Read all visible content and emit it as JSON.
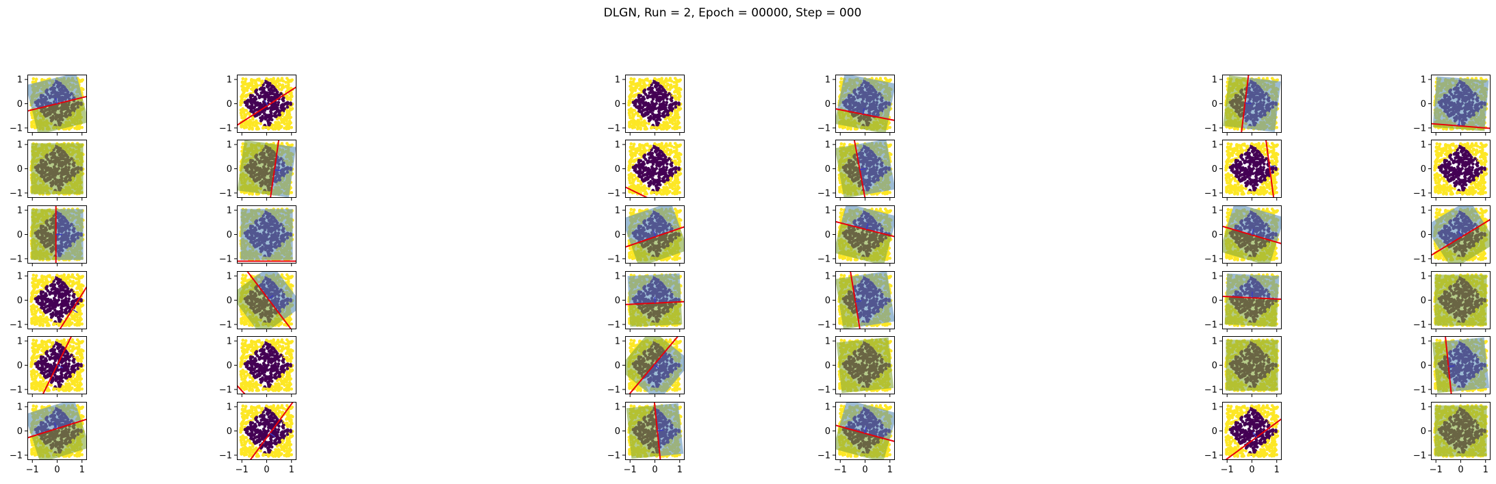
{
  "chart_data": {
    "type": "scatter",
    "title": "DLGN, Run = 2, Epoch = 00000, Step = 000",
    "layout": {
      "rows": 6,
      "columns": 6
    },
    "grid": false,
    "xlim": [
      -1.2,
      1.2
    ],
    "ylim": [
      -1.2,
      1.2
    ],
    "xticks": [
      -1,
      0,
      1
    ],
    "yticks": [
      -1,
      0,
      1
    ],
    "xtick_labels": [
      "−1",
      "0",
      "1"
    ],
    "ytick_labels": [
      "−1",
      "0",
      "1"
    ],
    "classes": [
      {
        "name": "inside |x|+|y|<1",
        "color": "#440154"
      },
      {
        "name": "outside",
        "color": "#fde725"
      }
    ],
    "overlay_colors": {
      "positive_half": "#5b8fb9",
      "negative_half": "#84a83a",
      "decision_line": "#e8000b",
      "arrow": "#3b3bc4"
    },
    "panels": [
      [
        {
          "w": [
            -0.25,
            1.0
          ],
          "b": 0.0,
          "shade": true
        },
        {
          "w": [
            -0.66,
            1.0
          ],
          "b": 0.1,
          "shade": false
        },
        {
          "w": [
            0.05,
            1.0
          ],
          "b": -2.4,
          "shade": false
        },
        {
          "w": [
            0.2,
            1.0
          ],
          "b": 0.45,
          "shade": true
        },
        {
          "w": [
            1.0,
            -0.12
          ],
          "b": 0.28,
          "shade": true
        },
        {
          "w": [
            0.08,
            1.0
          ],
          "b": 0.92,
          "shade": true
        }
      ],
      [
        {
          "w": [
            0.0,
            1.0
          ],
          "b": -2.5,
          "shade": true
        },
        {
          "w": [
            1.0,
            -0.14
          ],
          "b": -0.32,
          "shade": true
        },
        {
          "w": [
            0.5,
            1.0
          ],
          "b": 1.35,
          "shade": false
        },
        {
          "w": [
            1.0,
            0.18
          ],
          "b": 0.22,
          "shade": true
        },
        {
          "w": [
            1.0,
            0.13
          ],
          "b": -0.72,
          "shade": false
        },
        {
          "w": [
            1.0,
            0.7
          ],
          "b": -2.1,
          "shade": false
        }
      ],
      [
        {
          "w": [
            1.0,
            0.0
          ],
          "b": 0.05,
          "shade": true
        },
        {
          "w": [
            0.0,
            1.0
          ],
          "b": 1.1,
          "shade": true
        },
        {
          "w": [
            -0.35,
            1.0
          ],
          "b": 0.1,
          "shade": true
        },
        {
          "w": [
            0.26,
            1.0
          ],
          "b": -0.22,
          "shade": true
        },
        {
          "w": [
            0.3,
            1.0
          ],
          "b": 0.02,
          "shade": true
        },
        {
          "w": [
            -0.62,
            1.0
          ],
          "b": 0.12,
          "shade": true
        }
      ],
      [
        {
          "w": [
            1.0,
            -0.62
          ],
          "b": -0.85,
          "shade": false
        },
        {
          "w": [
            1.0,
            0.74
          ],
          "b": -0.1,
          "shade": true
        },
        {
          "w": [
            -0.05,
            1.0
          ],
          "b": 0.12,
          "shade": true
        },
        {
          "w": [
            1.0,
            0.16
          ],
          "b": 0.4,
          "shade": true
        },
        {
          "w": [
            0.05,
            1.0
          ],
          "b": -0.1,
          "shade": true
        },
        {
          "w": [
            0.0,
            1.0
          ],
          "b": -2.5,
          "shade": true
        }
      ],
      [
        {
          "w": [
            1.0,
            -0.48
          ],
          "b": 0.0,
          "shade": false
        },
        {
          "w": [
            1.0,
            0.9
          ],
          "b": 1.95,
          "shade": false
        },
        {
          "w": [
            1.0,
            -0.82
          ],
          "b": 0.05,
          "shade": true
        },
        {
          "w": [
            1.0,
            0.1
          ],
          "b": -1.5,
          "shade": true
        },
        {
          "w": [
            0.0,
            1.0
          ],
          "b": -2.5,
          "shade": true
        },
        {
          "w": [
            1.0,
            0.1
          ],
          "b": 0.5,
          "shade": true
        }
      ],
      [
        {
          "w": [
            -0.32,
            1.0
          ],
          "b": -0.1,
          "shade": true
        },
        {
          "w": [
            1.0,
            -0.72
          ],
          "b": -0.2,
          "shade": false
        },
        {
          "w": [
            1.0,
            0.1
          ],
          "b": -0.1,
          "shade": true
        },
        {
          "w": [
            0.28,
            1.0
          ],
          "b": 0.1,
          "shade": true
        },
        {
          "w": [
            -0.75,
            1.0
          ],
          "b": 0.4,
          "shade": false
        },
        {
          "w": [
            0.0,
            1.0
          ],
          "b": -2.5,
          "shade": true
        }
      ]
    ]
  }
}
